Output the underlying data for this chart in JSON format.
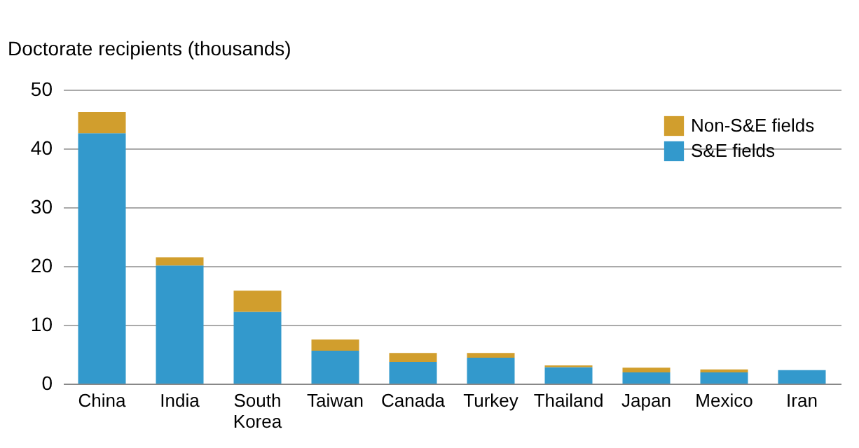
{
  "chart_data": {
    "type": "bar",
    "stacked": true,
    "ylabel": "Doctorate recipients (thousands)",
    "categories": [
      "China",
      "India",
      "South Korea",
      "Taiwan",
      "Canada",
      "Turkey",
      "Thailand",
      "Japan",
      "Mexico",
      "Iran"
    ],
    "series": [
      {
        "name": "S&E fields",
        "color": "#3399cc",
        "values": [
          42.6,
          20.1,
          12.2,
          5.6,
          3.7,
          4.4,
          2.8,
          1.9,
          1.9,
          2.3
        ]
      },
      {
        "name": "Non-S&E fields",
        "color": "#d19e2d",
        "values": [
          3.6,
          1.4,
          3.6,
          1.9,
          1.5,
          0.8,
          0.3,
          0.8,
          0.5,
          0
        ]
      }
    ],
    "ylim": [
      0,
      50
    ],
    "yticks": [
      0,
      10,
      20,
      30,
      40,
      50
    ],
    "grid": "y",
    "legend": "top right"
  }
}
